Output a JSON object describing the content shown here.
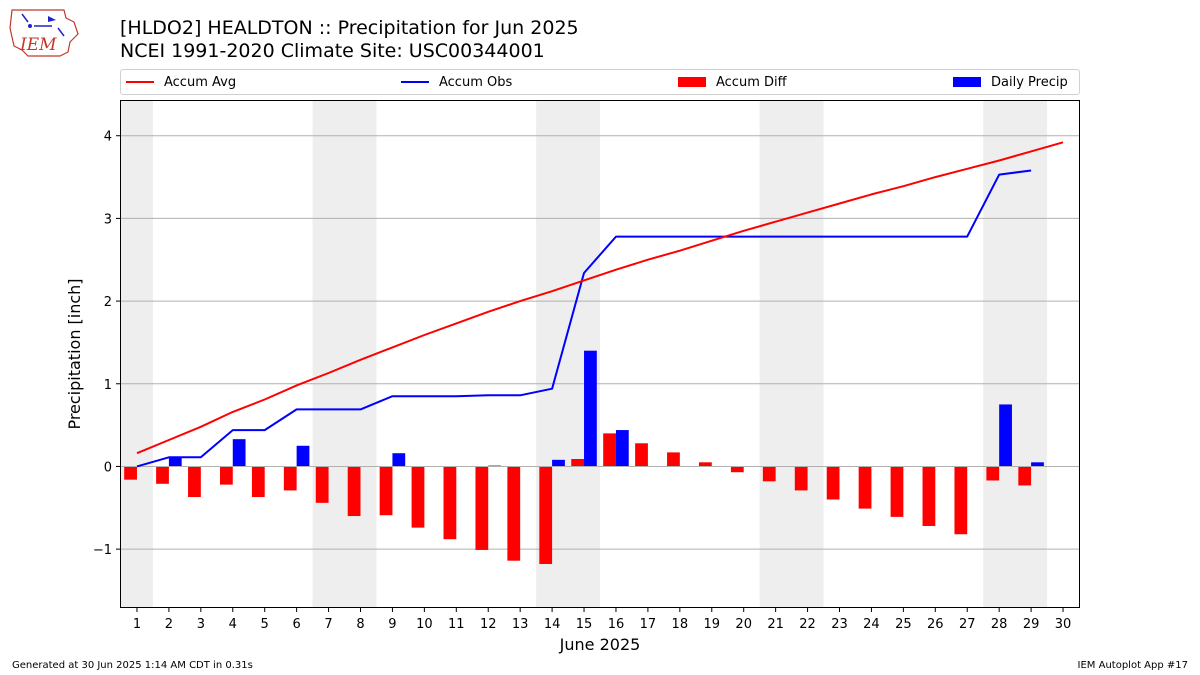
{
  "header": {
    "logo_text": "IEM",
    "title": "[HLDO2] HEALDTON :: Precipitation for Jun 2025",
    "subtitle": "NCEI 1991-2020 Climate Site: USC00344001"
  },
  "legend": [
    {
      "label": "Accum Avg",
      "kind": "line",
      "color": "#ff0000"
    },
    {
      "label": "Accum Obs",
      "kind": "line",
      "color": "#0000ff"
    },
    {
      "label": "Accum Diff",
      "kind": "box",
      "color": "#ff0000"
    },
    {
      "label": "Daily Precip",
      "kind": "box",
      "color": "#0000ff"
    }
  ],
  "footer": {
    "left": "Generated at 30 Jun 2025 1:14 AM CDT in 0.31s",
    "right": "IEM Autoplot App #17"
  },
  "chart_data": {
    "type": "bar",
    "xlabel": "June 2025",
    "ylabel": "Precipitation [inch]",
    "xlim": [
      0.5,
      30.5
    ],
    "ylim": [
      -1.7,
      4.42
    ],
    "yticks": [
      -1,
      0,
      1,
      2,
      3,
      4
    ],
    "ytick_labels": [
      "−1",
      "0",
      "1",
      "2",
      "3",
      "4"
    ],
    "categories": [
      1,
      2,
      3,
      4,
      5,
      6,
      7,
      8,
      9,
      10,
      11,
      12,
      13,
      14,
      15,
      16,
      17,
      18,
      19,
      20,
      21,
      22,
      23,
      24,
      25,
      26,
      27,
      28,
      29,
      30
    ],
    "weekend_shading": [
      [
        0.5,
        1.5
      ],
      [
        6.5,
        8.5
      ],
      [
        13.5,
        15.5
      ],
      [
        20.5,
        22.5
      ],
      [
        27.5,
        29.5
      ]
    ],
    "grid": "horizontal",
    "colors": {
      "avg": "#ff0000",
      "obs": "#0000ff",
      "diff": "#ff0000",
      "daily": "#0000ff",
      "shade": "#eeeeee",
      "grid": "#b0b0b0"
    },
    "series": [
      {
        "name": "Accum Avg",
        "kind": "line",
        "values": [
          0.16,
          0.32,
          0.48,
          0.66,
          0.81,
          0.98,
          1.13,
          1.29,
          1.44,
          1.59,
          1.73,
          1.87,
          2.0,
          2.12,
          2.25,
          2.38,
          2.5,
          2.61,
          2.73,
          2.85,
          2.96,
          3.07,
          3.18,
          3.29,
          3.39,
          3.5,
          3.6,
          3.7,
          3.81,
          3.92
        ]
      },
      {
        "name": "Accum Obs",
        "kind": "line",
        "values": [
          0.0,
          0.11,
          0.11,
          0.44,
          0.44,
          0.69,
          0.69,
          0.69,
          0.85,
          0.85,
          0.85,
          0.86,
          0.86,
          0.94,
          2.34,
          2.78,
          2.78,
          2.78,
          2.78,
          2.78,
          2.78,
          2.78,
          2.78,
          2.78,
          2.78,
          2.78,
          2.78,
          3.53,
          3.58,
          null
        ]
      },
      {
        "name": "Accum Diff",
        "kind": "bar",
        "values": [
          -0.16,
          -0.21,
          -0.37,
          -0.22,
          -0.37,
          -0.29,
          -0.44,
          -0.6,
          -0.59,
          -0.74,
          -0.88,
          -1.01,
          -1.14,
          -1.18,
          0.09,
          0.4,
          0.28,
          0.17,
          0.05,
          -0.07,
          -0.18,
          -0.29,
          -0.4,
          -0.51,
          -0.61,
          -0.72,
          -0.82,
          -0.17,
          -0.23,
          null
        ]
      },
      {
        "name": "Daily Precip",
        "kind": "bar",
        "values": [
          0.0,
          0.11,
          0.0,
          0.33,
          0.0,
          0.25,
          0.0,
          0.0,
          0.16,
          0.0,
          0.0,
          0.01,
          0.0,
          0.08,
          1.4,
          0.44,
          0.0,
          0.0,
          0.0,
          0.0,
          0.0,
          0.0,
          0.0,
          0.0,
          0.0,
          0.0,
          0.0,
          0.75,
          0.05,
          null
        ]
      }
    ]
  }
}
